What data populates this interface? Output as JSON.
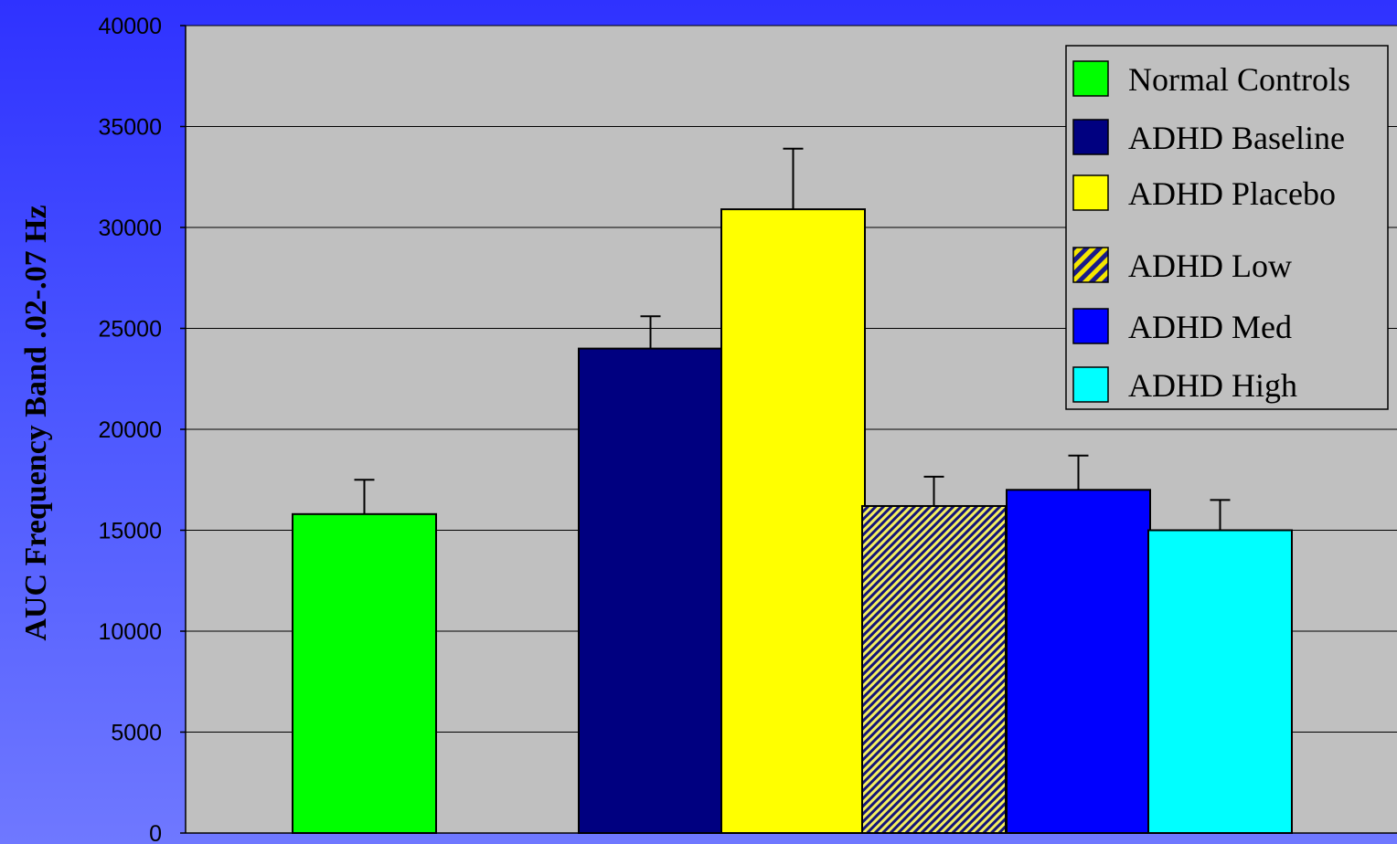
{
  "chart_data": {
    "type": "bar",
    "title": "",
    "xlabel": "",
    "ylabel": "AUC Frequency  Band .02-.07 Hz",
    "ylim": [
      0,
      40000
    ],
    "yticks": [
      0,
      5000,
      10000,
      15000,
      20000,
      25000,
      30000,
      35000,
      40000
    ],
    "grid": true,
    "legend_position": "top-right",
    "series": [
      {
        "name": "Normal Controls",
        "value": 15800,
        "error": 1700,
        "color": "#00ff00",
        "pattern": "solid"
      },
      {
        "name": "ADHD Baseline",
        "value": 24000,
        "error": 1600,
        "color": "#000080",
        "pattern": "solid"
      },
      {
        "name": "ADHD Placebo",
        "value": 30900,
        "error": 3000,
        "color": "#ffff00",
        "pattern": "solid"
      },
      {
        "name": "ADHD Low",
        "value": 16200,
        "error": 1450,
        "color": "#000080",
        "pattern": "diagonal-yellow"
      },
      {
        "name": "ADHD Med",
        "value": 17000,
        "error": 1700,
        "color": "#0000ff",
        "pattern": "solid"
      },
      {
        "name": "ADHD High",
        "value": 15000,
        "error": 1500,
        "color": "#00ffff",
        "pattern": "solid"
      }
    ]
  }
}
